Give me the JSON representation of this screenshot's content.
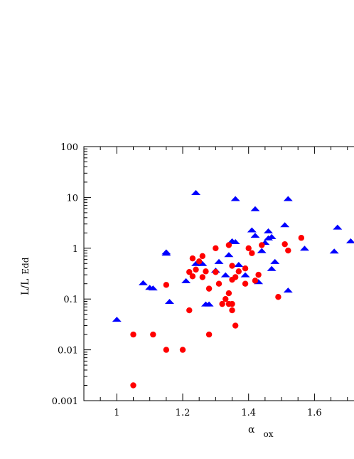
{
  "chart_data": {
    "type": "scatter",
    "xlabel": {
      "symbol": "α",
      "subscript": "ox"
    },
    "ylabel": {
      "main": "L/L",
      "subscript": "Edd"
    },
    "xlim": [
      0.9,
      1.72
    ],
    "ylim": [
      0.001,
      100
    ],
    "yscale": "log",
    "x_ticks": [
      {
        "value": 1.0,
        "label": "1"
      },
      {
        "value": 1.2,
        "label": "1.2"
      },
      {
        "value": 1.4,
        "label": "1.4"
      },
      {
        "value": 1.6,
        "label": "1.6"
      }
    ],
    "y_ticks": [
      {
        "value": 100,
        "label": "100"
      },
      {
        "value": 10,
        "label": "10"
      },
      {
        "value": 1,
        "label": "1"
      },
      {
        "value": 0.1,
        "label": "0.1"
      },
      {
        "value": 0.01,
        "label": "0.01"
      },
      {
        "value": 0.001,
        "label": "0.001"
      }
    ],
    "grid": false,
    "series": [
      {
        "marker": "triangle",
        "color": "#0000ff",
        "points": [
          [
            1.0,
            0.04
          ],
          [
            1.08,
            0.21
          ],
          [
            1.1,
            0.17
          ],
          [
            1.11,
            0.165
          ],
          [
            1.15,
            0.85
          ],
          [
            1.15,
            0.8
          ],
          [
            1.16,
            0.09
          ],
          [
            1.21,
            0.23
          ],
          [
            1.24,
            12.5
          ],
          [
            1.24,
            0.5
          ],
          [
            1.26,
            0.5
          ],
          [
            1.27,
            0.08
          ],
          [
            1.28,
            0.08
          ],
          [
            1.3,
            0.37
          ],
          [
            1.31,
            0.55
          ],
          [
            1.33,
            0.3
          ],
          [
            1.34,
            0.75
          ],
          [
            1.35,
            1.4
          ],
          [
            1.36,
            9.5
          ],
          [
            1.36,
            1.35
          ],
          [
            1.37,
            0.48
          ],
          [
            1.39,
            0.3
          ],
          [
            1.41,
            2.3
          ],
          [
            1.42,
            6.0
          ],
          [
            1.42,
            1.8
          ],
          [
            1.43,
            0.22
          ],
          [
            1.44,
            0.9
          ],
          [
            1.45,
            1.3
          ],
          [
            1.46,
            2.2
          ],
          [
            1.46,
            1.6
          ],
          [
            1.47,
            1.7
          ],
          [
            1.47,
            0.4
          ],
          [
            1.48,
            0.55
          ],
          [
            1.51,
            2.9
          ],
          [
            1.52,
            9.5
          ],
          [
            1.52,
            0.15
          ],
          [
            1.57,
            1.0
          ],
          [
            1.66,
            0.88
          ],
          [
            1.67,
            2.6
          ],
          [
            1.71,
            1.4
          ]
        ]
      },
      {
        "marker": "circle",
        "color": "#ff0000",
        "points": [
          [
            1.05,
            0.02
          ],
          [
            1.05,
            0.002
          ],
          [
            1.11,
            0.02
          ],
          [
            1.15,
            0.01
          ],
          [
            1.15,
            0.19
          ],
          [
            1.2,
            0.01
          ],
          [
            1.22,
            0.06
          ],
          [
            1.22,
            0.34
          ],
          [
            1.23,
            0.63
          ],
          [
            1.23,
            0.28
          ],
          [
            1.24,
            0.38
          ],
          [
            1.25,
            0.55
          ],
          [
            1.26,
            0.27
          ],
          [
            1.26,
            0.7
          ],
          [
            1.27,
            0.35
          ],
          [
            1.28,
            0.16
          ],
          [
            1.28,
            0.02
          ],
          [
            1.3,
            0.34
          ],
          [
            1.3,
            1.0
          ],
          [
            1.31,
            0.2
          ],
          [
            1.32,
            0.08
          ],
          [
            1.33,
            0.1
          ],
          [
            1.34,
            0.08
          ],
          [
            1.34,
            0.13
          ],
          [
            1.34,
            1.15
          ],
          [
            1.35,
            0.06
          ],
          [
            1.35,
            0.08
          ],
          [
            1.35,
            0.45
          ],
          [
            1.35,
            0.24
          ],
          [
            1.36,
            0.03
          ],
          [
            1.36,
            0.27
          ],
          [
            1.37,
            0.35
          ],
          [
            1.39,
            0.4
          ],
          [
            1.39,
            0.2
          ],
          [
            1.4,
            1.0
          ],
          [
            1.41,
            0.8
          ],
          [
            1.42,
            0.23
          ],
          [
            1.43,
            0.3
          ],
          [
            1.44,
            1.15
          ],
          [
            1.49,
            0.11
          ],
          [
            1.51,
            1.2
          ],
          [
            1.52,
            0.9
          ],
          [
            1.56,
            1.6
          ]
        ]
      }
    ]
  }
}
